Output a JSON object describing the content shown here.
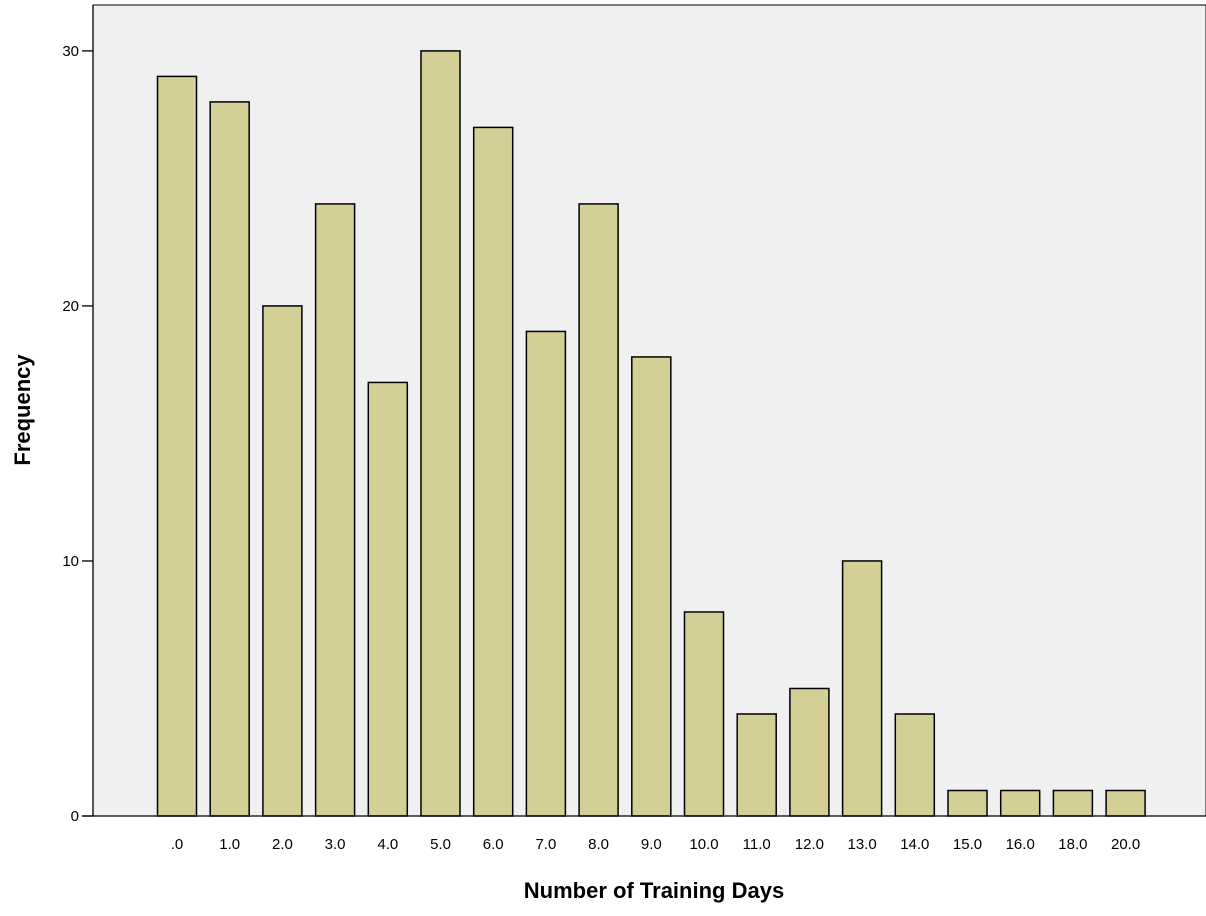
{
  "chart_data": {
    "type": "bar",
    "title": "",
    "xlabel": "Number of Training Days",
    "ylabel": "Frequency",
    "categories": [
      ".0",
      "1.0",
      "2.0",
      "3.0",
      "4.0",
      "5.0",
      "6.0",
      "7.0",
      "8.0",
      "9.0",
      "10.0",
      "11.0",
      "12.0",
      "13.0",
      "14.0",
      "15.0",
      "16.0",
      "18.0",
      "20.0"
    ],
    "values": [
      29,
      28,
      20,
      24,
      17,
      30,
      27,
      19,
      24,
      18,
      8,
      4,
      5,
      10,
      4,
      1,
      1,
      1,
      1
    ],
    "ylim": [
      0,
      31.8
    ],
    "yticks": [
      0,
      10,
      20,
      30
    ],
    "ytick_labels": [
      "0",
      "10",
      "20",
      "30"
    ],
    "grid": false,
    "legend": "none",
    "colors": {
      "bar_fill": "#d4cf97",
      "bar_stroke": "#000000",
      "plot_background": "#f0f0f0",
      "page_background": "#ffffff"
    }
  }
}
